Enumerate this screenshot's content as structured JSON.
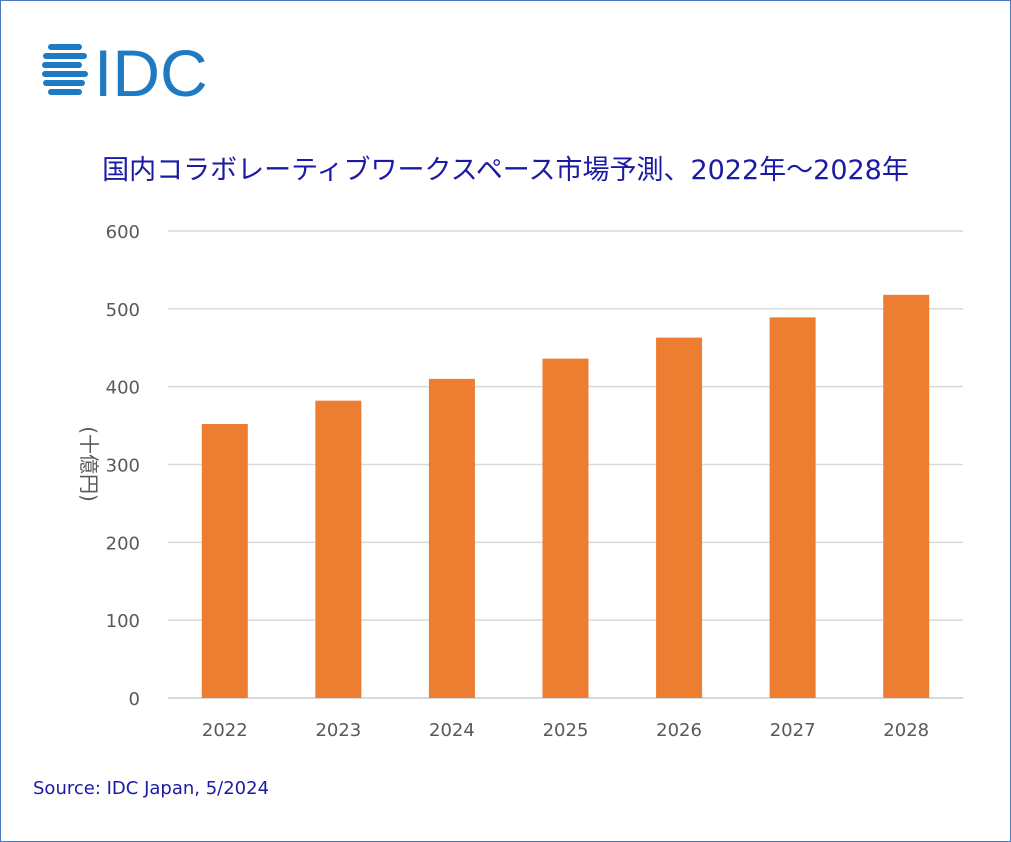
{
  "logo_text": "IDC",
  "colors": {
    "bar": "#ED7D31",
    "title": "#1A1AA6",
    "grid": "#D9D9D9",
    "logo": "#1F7AC4",
    "frame": "#4A78C2"
  },
  "chart_data": {
    "type": "bar",
    "title": "国内コラボレーティブワークスペース市場予測、2022年～2028年",
    "xlabel": "",
    "ylabel": "(十億円)",
    "categories": [
      "2022",
      "2023",
      "2024",
      "2025",
      "2026",
      "2027",
      "2028"
    ],
    "values": [
      352,
      382,
      410,
      436,
      463,
      489,
      518
    ],
    "ylim": [
      0,
      600
    ],
    "yticks": [
      "0",
      "100",
      "200",
      "300",
      "400",
      "500",
      "600"
    ],
    "grid": true,
    "legend": "none"
  },
  "source": "Source: IDC Japan, 5/2024"
}
